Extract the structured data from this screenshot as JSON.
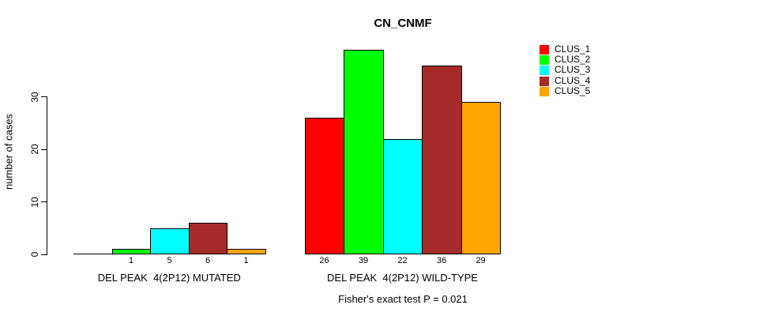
{
  "chart_data": {
    "type": "bar",
    "title": "CN_CNMF",
    "ylabel": "number of cases",
    "ylim": [
      0,
      41
    ],
    "yticks": [
      0,
      10,
      20,
      30
    ],
    "grid": false,
    "legend_position": "right",
    "bar_border_color": "#000000",
    "legend": [
      {
        "label": "CLUS_1",
        "color": "#FF0000"
      },
      {
        "label": "CLUS_2",
        "color": "#00FF00"
      },
      {
        "label": "CLUS_3",
        "color": "#00FFFF"
      },
      {
        "label": "CLUS_4",
        "color": "#A52A2A"
      },
      {
        "label": "CLUS_5",
        "color": "#FFA500"
      }
    ],
    "groups": [
      {
        "label": "DEL PEAK  4(2P12) MUTATED",
        "values": [
          0,
          1,
          5,
          6,
          1
        ],
        "bar_labels": [
          "",
          "1",
          "5",
          "6",
          "1"
        ]
      },
      {
        "label": "DEL PEAK  4(2P12) WILD-TYPE",
        "values": [
          26,
          39,
          22,
          36,
          29
        ],
        "bar_labels": [
          "26",
          "39",
          "22",
          "36",
          "29"
        ]
      }
    ],
    "annotation": "Fisher's exact test P = 0.021"
  }
}
